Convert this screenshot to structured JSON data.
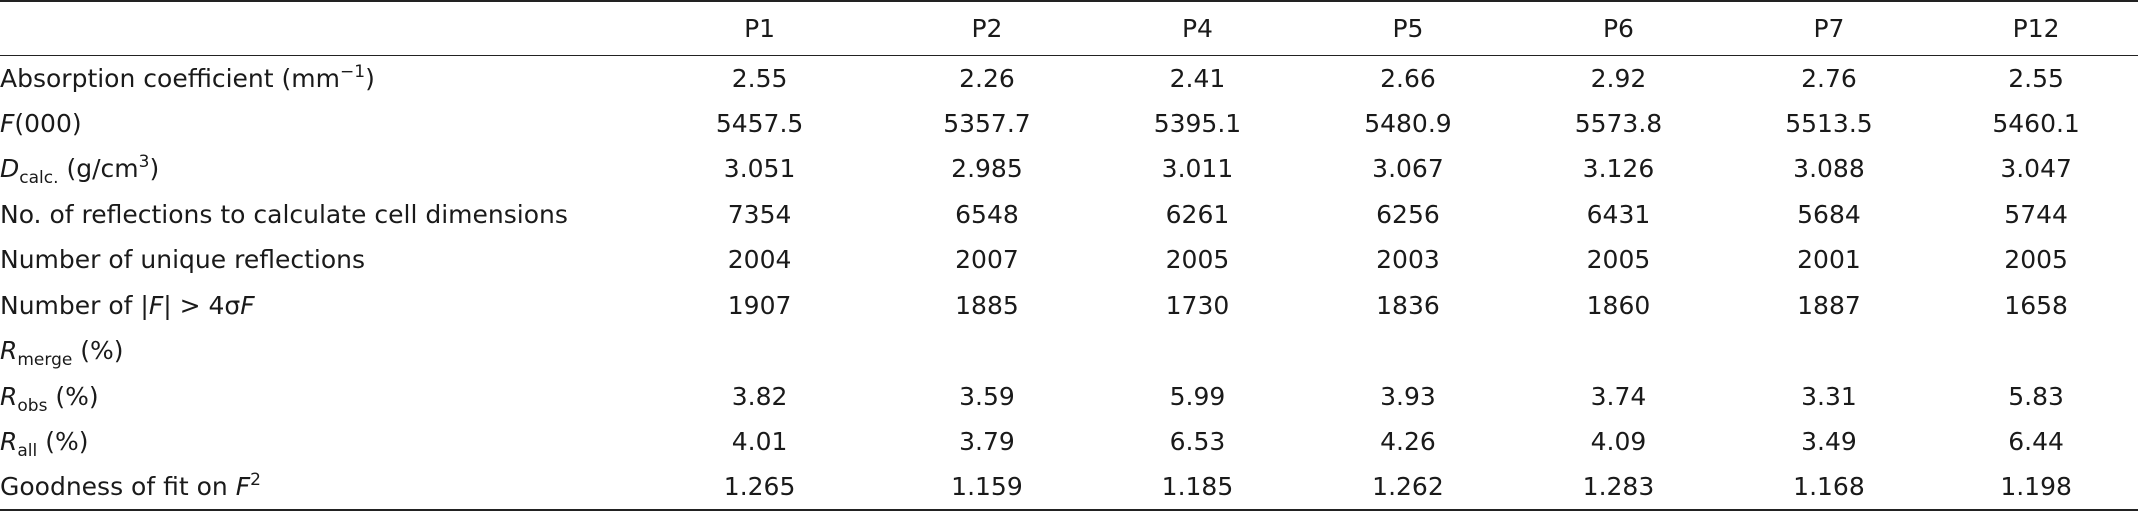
{
  "table": {
    "columns": [
      "P1",
      "P2",
      "P4",
      "P5",
      "P6",
      "P7",
      "P12"
    ],
    "rows": [
      {
        "id": "absorption",
        "label": {
          "text": "Absorption coefficient (mm",
          "sup": "−1",
          "after": ")"
        },
        "values": [
          "2.55",
          "2.26",
          "2.41",
          "2.66",
          "2.92",
          "2.76",
          "2.55"
        ]
      },
      {
        "id": "f000",
        "label": {
          "italic": "F",
          "after": "(000)"
        },
        "values": [
          "5457.5",
          "5357.7",
          "5395.1",
          "5480.9",
          "5573.8",
          "5513.5",
          "5460.1"
        ]
      },
      {
        "id": "dcalc",
        "label": {
          "italic": "D",
          "sub": "calc.",
          "after": " (g/cm",
          "sup": "3",
          "after2": ")"
        },
        "values": [
          "3.051",
          "2.985",
          "3.011",
          "3.067",
          "3.126",
          "3.088",
          "3.047"
        ]
      },
      {
        "id": "reflections-cell",
        "label": {
          "text": "No. of reflections to calculate cell dimensions"
        },
        "values": [
          "7354",
          "6548",
          "6261",
          "6256",
          "6431",
          "5684",
          "5744"
        ]
      },
      {
        "id": "unique-reflections",
        "label": {
          "text": "Number of unique reflections"
        },
        "values": [
          "2004",
          "2007",
          "2005",
          "2003",
          "2005",
          "2001",
          "2005"
        ]
      },
      {
        "id": "f-gt-4sigma",
        "label": {
          "text": "Number of |",
          "italic": "F",
          "after": "| > 4σ",
          "italic2": "F"
        },
        "values": [
          "1907",
          "1885",
          "1730",
          "1836",
          "1860",
          "1887",
          "1658"
        ]
      },
      {
        "id": "r-merge",
        "label": {
          "italic": "R",
          "sub": "merge",
          "after": " (%)"
        },
        "values": [
          "",
          "",
          "",
          "",
          "",
          "",
          ""
        ]
      },
      {
        "id": "r-obs",
        "label": {
          "italic": "R",
          "sub": "obs",
          "after": " (%)"
        },
        "values": [
          "3.82",
          "3.59",
          "5.99",
          "3.93",
          "3.74",
          "3.31",
          "5.83"
        ]
      },
      {
        "id": "r-all",
        "label": {
          "italic": "R",
          "sub": "all",
          "after": " (%)"
        },
        "values": [
          "4.01",
          "3.79",
          "6.53",
          "4.26",
          "4.09",
          "3.49",
          "6.44"
        ]
      },
      {
        "id": "goodness-of-fit",
        "label": {
          "text": "Goodness of fit on ",
          "italic": "F",
          "sup": "2"
        },
        "values": [
          "1.265",
          "1.159",
          "1.185",
          "1.262",
          "1.283",
          "1.168",
          "1.198"
        ]
      }
    ]
  }
}
